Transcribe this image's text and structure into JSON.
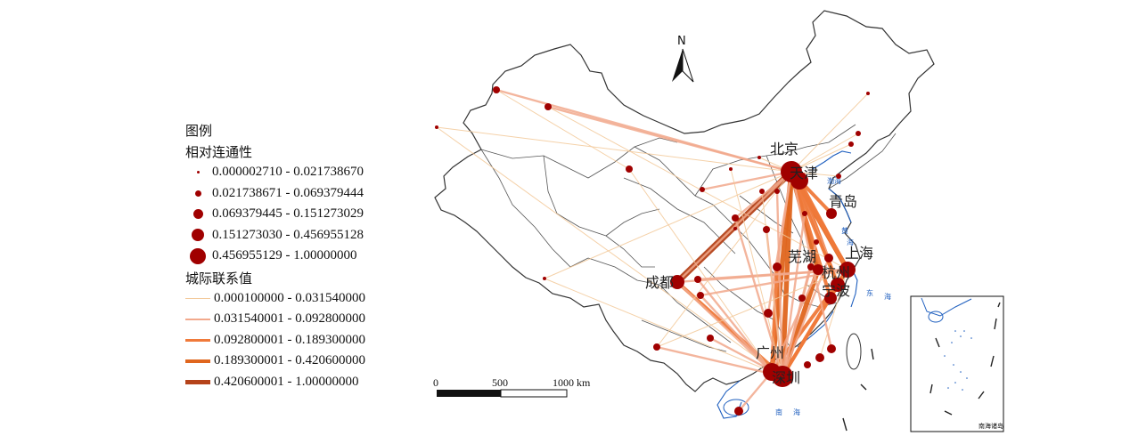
{
  "legend": {
    "title": "图例",
    "node_heading": "相对连通性",
    "node_classes": [
      {
        "label": "0.000002710 - 0.021738670",
        "size": 1
      },
      {
        "label": "0.021738671 - 0.069379444",
        "size": 2
      },
      {
        "label": "0.069379445 - 0.151273029",
        "size": 3
      },
      {
        "label": "0.151273030 - 0.456955128",
        "size": 4
      },
      {
        "label": "0.456955129 - 1.00000000",
        "size": 5
      }
    ],
    "link_heading": "城际联系值",
    "link_classes": [
      {
        "label": "0.000100000 - 0.031540000",
        "color": "#f3c99a",
        "weight": 1
      },
      {
        "label": "0.031540001 - 0.092800000",
        "color": "#f2a98c",
        "weight": 2
      },
      {
        "label": "0.092800001 - 0.189300000",
        "color": "#f07a3a",
        "weight": 3
      },
      {
        "label": "0.189300001 - 0.420600000",
        "color": "#e0661e",
        "weight": 4
      },
      {
        "label": "0.420600001 - 1.00000000",
        "color": "#b5431a",
        "weight": 5
      }
    ]
  },
  "colors": {
    "node": "#a00000",
    "boundary": "#333333",
    "sea": "#1f5fbf"
  },
  "north_arrow": {
    "label": "N"
  },
  "scale_bar": {
    "labels": [
      "0",
      "500",
      "1000 km"
    ]
  },
  "sea_labels": [
    "黄",
    "海",
    "东",
    "海",
    "南",
    "海",
    "渤海"
  ],
  "inset": {
    "label": "南海诸岛"
  },
  "city_labels": [
    "北京",
    "天津",
    "青岛",
    "上海",
    "芜湖",
    "杭州",
    "宁波",
    "成都",
    "广州",
    "深圳"
  ]
}
